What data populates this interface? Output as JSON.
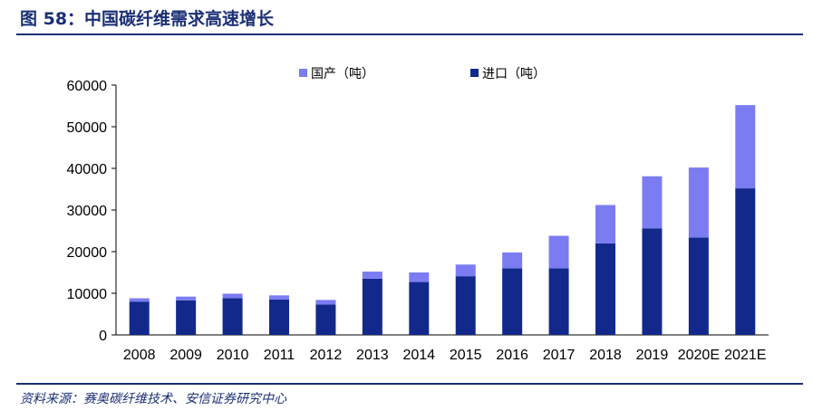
{
  "header": {
    "title": "图 58：中国碳纤维需求高速增长"
  },
  "footer": {
    "source": "资料来源：赛奥碳纤维技术、安信证券研究中心"
  },
  "chart_data": {
    "type": "bar",
    "stacked": true,
    "categories": [
      "2008",
      "2009",
      "2010",
      "2011",
      "2012",
      "2013",
      "2014",
      "2015",
      "2016",
      "2017",
      "2018",
      "2019",
      "2020E",
      "2021E"
    ],
    "series": [
      {
        "name": "进口（吨）",
        "color": "#12298b",
        "values": [
          8000,
          8300,
          8800,
          8500,
          7300,
          13500,
          12700,
          14100,
          16000,
          16000,
          22000,
          25600,
          23400,
          35200
        ]
      },
      {
        "name": "国产（吨）",
        "color": "#7b7cf2",
        "values": [
          800,
          900,
          1100,
          1000,
          1100,
          1700,
          2300,
          2800,
          3800,
          7800,
          9200,
          12500,
          16800,
          20000
        ]
      }
    ],
    "ylim": [
      0,
      60000
    ],
    "yticks": [
      0,
      10000,
      20000,
      30000,
      40000,
      50000,
      60000
    ],
    "legend": "top-center",
    "grid": false
  }
}
